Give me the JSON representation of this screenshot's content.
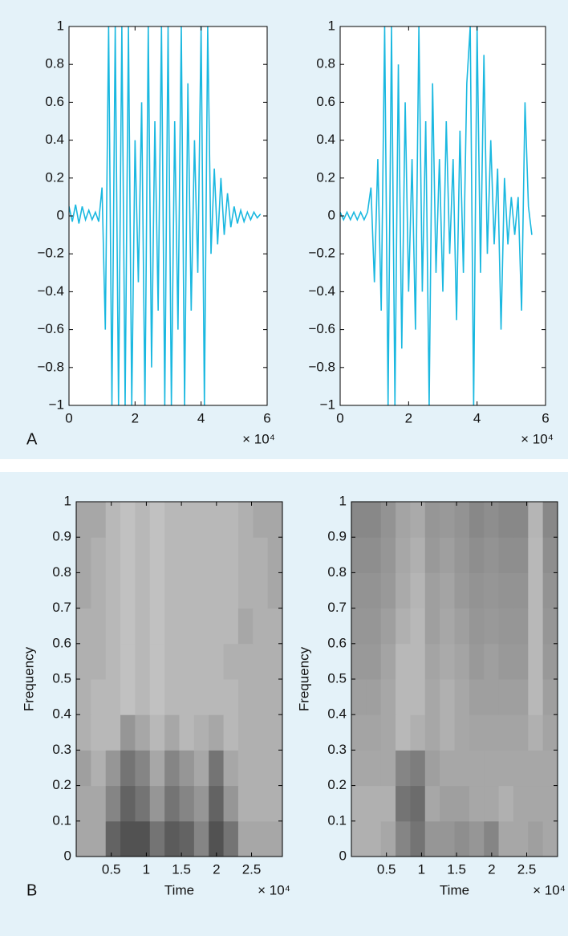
{
  "chart_data": [
    {
      "type": "line",
      "panel_label": "A",
      "x_multiplier": "× 10⁴",
      "color": "#1ab8e0",
      "xlim": [
        0,
        6
      ],
      "xticks": [
        0,
        2,
        4,
        6
      ],
      "ylim": [
        -1,
        1
      ],
      "yticks": [
        {
          "value": -1,
          "label": "−1"
        },
        {
          "value": -0.8,
          "label": "−0.8"
        },
        {
          "value": -0.6,
          "label": "−0.6"
        },
        {
          "value": -0.4,
          "label": "−0.4"
        },
        {
          "value": -0.2,
          "label": "−0.2"
        },
        0,
        0.2,
        0.4,
        0.6,
        0.8,
        1
      ],
      "x": [
        0,
        0.1,
        0.2,
        0.3,
        0.4,
        0.5,
        0.6,
        0.7,
        0.8,
        0.9,
        1.0,
        1.1,
        1.2,
        1.3,
        1.4,
        1.5,
        1.6,
        1.7,
        1.8,
        1.9,
        2.0,
        2.1,
        2.2,
        2.3,
        2.4,
        2.5,
        2.6,
        2.7,
        2.8,
        2.9,
        3.0,
        3.1,
        3.2,
        3.3,
        3.4,
        3.5,
        3.6,
        3.7,
        3.8,
        3.9,
        4.0,
        4.1,
        4.2,
        4.3,
        4.4,
        4.5,
        4.6,
        4.7,
        4.8,
        4.9,
        5.0,
        5.1,
        5.2,
        5.3,
        5.4,
        5.5,
        5.6,
        5.7,
        5.8
      ],
      "values": [
        0.05,
        -0.03,
        0.06,
        -0.04,
        0.05,
        -0.02,
        0.03,
        -0.02,
        0.02,
        -0.03,
        0.15,
        -0.6,
        1,
        -1,
        1,
        -1,
        1,
        -1,
        1,
        -1,
        0.4,
        -0.35,
        0.6,
        -1,
        1,
        -0.8,
        0.5,
        -0.5,
        1,
        -1,
        1,
        -1,
        0.5,
        -0.6,
        1,
        -1,
        0.7,
        -0.5,
        0.4,
        -0.3,
        1,
        -1,
        1,
        -0.2,
        0.25,
        -0.15,
        0.2,
        -0.1,
        0.12,
        -0.06,
        0.05,
        -0.04,
        0.03,
        -0.03,
        0.02,
        -0.02,
        0.02,
        -0.01,
        0.01
      ]
    },
    {
      "type": "line",
      "x_multiplier": "× 10⁴",
      "color": "#1ab8e0",
      "xlim": [
        0,
        6
      ],
      "xticks": [
        0,
        2,
        4,
        6
      ],
      "ylim": [
        -1,
        1
      ],
      "yticks": [
        {
          "value": -1,
          "label": "−1"
        },
        {
          "value": -0.8,
          "label": "−0.8"
        },
        {
          "value": -0.6,
          "label": "−0.6"
        },
        {
          "value": -0.4,
          "label": "−0.4"
        },
        {
          "value": -0.2,
          "label": "−0.2"
        },
        0,
        0.2,
        0.4,
        0.6,
        0.8,
        1
      ],
      "x": [
        0,
        0.1,
        0.2,
        0.3,
        0.4,
        0.5,
        0.6,
        0.7,
        0.8,
        0.9,
        1.0,
        1.1,
        1.2,
        1.3,
        1.4,
        1.5,
        1.6,
        1.7,
        1.8,
        1.9,
        2.0,
        2.1,
        2.2,
        2.3,
        2.4,
        2.5,
        2.6,
        2.7,
        2.8,
        2.9,
        3.0,
        3.1,
        3.2,
        3.3,
        3.4,
        3.5,
        3.6,
        3.7,
        3.8,
        3.9,
        4.0,
        4.1,
        4.2,
        4.3,
        4.4,
        4.5,
        4.6,
        4.7,
        4.8,
        4.9,
        5.0,
        5.1,
        5.2,
        5.3,
        5.4,
        5.5,
        5.6
      ],
      "values": [
        0.02,
        -0.02,
        0.02,
        -0.02,
        0.02,
        -0.02,
        0.02,
        -0.02,
        0.02,
        0.15,
        -0.35,
        0.3,
        -0.5,
        1,
        -1,
        1,
        -1,
        0.8,
        -0.7,
        0.6,
        -0.4,
        0.3,
        -0.6,
        1,
        -0.4,
        0.5,
        -1,
        0.7,
        -0.3,
        0.3,
        -0.4,
        0.5,
        -0.2,
        0.3,
        -0.55,
        0.45,
        -0.3,
        0.7,
        1,
        -1,
        1,
        -0.3,
        0.85,
        -0.2,
        0.4,
        -0.15,
        0.25,
        -0.6,
        0.2,
        -0.15,
        0.1,
        -0.1,
        0.1,
        -0.5,
        0.6,
        0.05,
        -0.1
      ]
    },
    {
      "type": "heatmap",
      "panel_label": "B",
      "x_multiplier": "× 10⁴",
      "xlabel": "Time",
      "ylabel": "Frequency",
      "xlim": [
        0,
        2.94
      ],
      "xticks": [
        0.5,
        1,
        1.5,
        2,
        2.5
      ],
      "ylim": [
        0,
        1
      ],
      "yticks": [
        0,
        0.1,
        0.2,
        0.3,
        0.4,
        0.5,
        0.6,
        0.7,
        0.8,
        0.9,
        1
      ],
      "x_edges": [
        0,
        0.21,
        0.42,
        0.63,
        0.84,
        1.05,
        1.26,
        1.47,
        1.68,
        1.89,
        2.1,
        2.31,
        2.52,
        2.73,
        2.94
      ],
      "y_edges": [
        0,
        0.1,
        0.2,
        0.3,
        0.4,
        0.5,
        0.6,
        0.7,
        0.8,
        0.9,
        1
      ],
      "z": [
        [
          0.4,
          0.4,
          0.8,
          0.9,
          0.9,
          0.7,
          0.85,
          0.8,
          0.6,
          0.9,
          0.7,
          0.4,
          0.4,
          0.4
        ],
        [
          0.4,
          0.4,
          0.6,
          0.8,
          0.7,
          0.5,
          0.7,
          0.6,
          0.5,
          0.8,
          0.5,
          0.35,
          0.35,
          0.35
        ],
        [
          0.45,
          0.35,
          0.5,
          0.7,
          0.6,
          0.4,
          0.6,
          0.5,
          0.4,
          0.7,
          0.4,
          0.35,
          0.35,
          0.35
        ],
        [
          0.35,
          0.3,
          0.3,
          0.5,
          0.4,
          0.3,
          0.4,
          0.3,
          0.35,
          0.4,
          0.3,
          0.35,
          0.35,
          0.35
        ],
        [
          0.35,
          0.3,
          0.3,
          0.25,
          0.3,
          0.25,
          0.3,
          0.3,
          0.3,
          0.3,
          0.3,
          0.35,
          0.35,
          0.35
        ],
        [
          0.35,
          0.35,
          0.3,
          0.25,
          0.3,
          0.25,
          0.3,
          0.3,
          0.3,
          0.3,
          0.35,
          0.35,
          0.35,
          0.35
        ],
        [
          0.35,
          0.35,
          0.3,
          0.25,
          0.3,
          0.25,
          0.3,
          0.3,
          0.3,
          0.3,
          0.3,
          0.4,
          0.35,
          0.35
        ],
        [
          0.4,
          0.35,
          0.3,
          0.25,
          0.3,
          0.25,
          0.3,
          0.3,
          0.3,
          0.3,
          0.3,
          0.35,
          0.35,
          0.4
        ],
        [
          0.4,
          0.35,
          0.3,
          0.25,
          0.3,
          0.25,
          0.3,
          0.3,
          0.3,
          0.3,
          0.3,
          0.35,
          0.35,
          0.4
        ],
        [
          0.4,
          0.4,
          0.3,
          0.25,
          0.3,
          0.25,
          0.3,
          0.3,
          0.3,
          0.3,
          0.3,
          0.35,
          0.4,
          0.4
        ]
      ]
    },
    {
      "type": "heatmap",
      "x_multiplier": "× 10⁴",
      "xlabel": "Time",
      "ylabel": "Frequency",
      "xlim": [
        0,
        2.94
      ],
      "xticks": [
        0.5,
        1,
        1.5,
        2,
        2.5
      ],
      "ylim": [
        0,
        1
      ],
      "yticks": [
        0,
        0.1,
        0.2,
        0.3,
        0.4,
        0.5,
        0.6,
        0.7,
        0.8,
        0.9,
        1
      ],
      "x_edges": [
        0,
        0.21,
        0.42,
        0.63,
        0.84,
        1.05,
        1.26,
        1.47,
        1.68,
        1.89,
        2.1,
        2.31,
        2.52,
        2.73,
        2.94
      ],
      "y_edges": [
        0,
        0.1,
        0.2,
        0.3,
        0.4,
        0.5,
        0.6,
        0.7,
        0.8,
        0.9,
        1
      ],
      "z": [
        [
          0.35,
          0.35,
          0.4,
          0.6,
          0.7,
          0.5,
          0.5,
          0.55,
          0.5,
          0.6,
          0.4,
          0.4,
          0.45,
          0.4
        ],
        [
          0.35,
          0.35,
          0.35,
          0.7,
          0.75,
          0.4,
          0.45,
          0.45,
          0.4,
          0.4,
          0.35,
          0.4,
          0.4,
          0.4
        ],
        [
          0.4,
          0.4,
          0.4,
          0.6,
          0.65,
          0.45,
          0.4,
          0.4,
          0.4,
          0.4,
          0.4,
          0.4,
          0.4,
          0.4
        ],
        [
          0.42,
          0.42,
          0.4,
          0.3,
          0.35,
          0.4,
          0.35,
          0.4,
          0.42,
          0.42,
          0.42,
          0.42,
          0.35,
          0.42
        ],
        [
          0.45,
          0.45,
          0.4,
          0.3,
          0.3,
          0.4,
          0.35,
          0.4,
          0.45,
          0.45,
          0.45,
          0.45,
          0.3,
          0.45
        ],
        [
          0.48,
          0.48,
          0.42,
          0.3,
          0.3,
          0.42,
          0.38,
          0.42,
          0.48,
          0.45,
          0.48,
          0.48,
          0.3,
          0.48
        ],
        [
          0.5,
          0.5,
          0.45,
          0.35,
          0.3,
          0.45,
          0.4,
          0.45,
          0.5,
          0.48,
          0.5,
          0.5,
          0.3,
          0.5
        ],
        [
          0.52,
          0.52,
          0.48,
          0.38,
          0.32,
          0.45,
          0.42,
          0.48,
          0.52,
          0.5,
          0.52,
          0.52,
          0.3,
          0.52
        ],
        [
          0.55,
          0.55,
          0.5,
          0.4,
          0.35,
          0.48,
          0.45,
          0.5,
          0.55,
          0.52,
          0.55,
          0.55,
          0.3,
          0.55
        ],
        [
          0.58,
          0.58,
          0.52,
          0.42,
          0.38,
          0.5,
          0.48,
          0.52,
          0.58,
          0.55,
          0.58,
          0.58,
          0.32,
          0.58
        ]
      ]
    }
  ]
}
